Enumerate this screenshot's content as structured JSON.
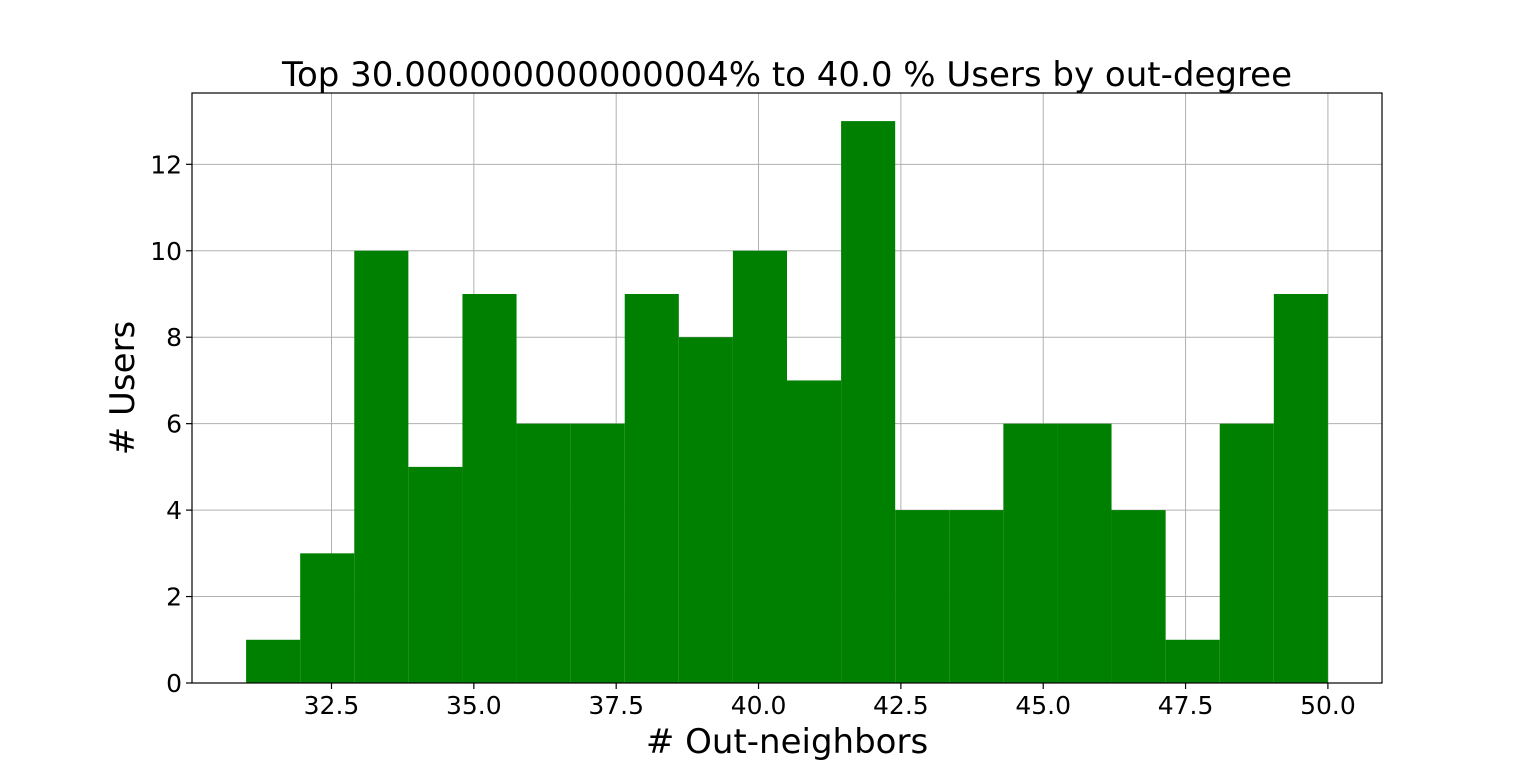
{
  "chart_data": {
    "type": "bar",
    "title": "Top 30.000000000000004%  to 40.0 % Users by out-degree",
    "xlabel": "# Out-neighbors",
    "ylabel": "# Users",
    "bar_color": "#008000",
    "grid": true,
    "xlim": [
      30.05,
      50.95
    ],
    "ylim": [
      0,
      13.65
    ],
    "x_ticks": [
      32.5,
      35.0,
      37.5,
      40.0,
      42.5,
      45.0,
      47.5,
      50.0
    ],
    "x_tick_labels": [
      "32.5",
      "35.0",
      "37.5",
      "40.0",
      "42.5",
      "45.0",
      "47.5",
      "50.0"
    ],
    "y_ticks": [
      0,
      2,
      4,
      6,
      8,
      10,
      12
    ],
    "y_tick_labels": [
      "0",
      "2",
      "4",
      "6",
      "8",
      "10",
      "12"
    ],
    "bin_edges": [
      31.0,
      31.95,
      32.9,
      33.85,
      34.8,
      35.75,
      36.7,
      37.65,
      38.6,
      39.55,
      40.5,
      41.45,
      42.4,
      43.35,
      44.3,
      45.25,
      46.2,
      47.15,
      48.1,
      49.05,
      50.0
    ],
    "values": [
      1,
      3,
      10,
      5,
      9,
      6,
      6,
      9,
      8,
      10,
      7,
      13,
      4,
      4,
      6,
      6,
      4,
      1,
      6,
      9
    ]
  }
}
